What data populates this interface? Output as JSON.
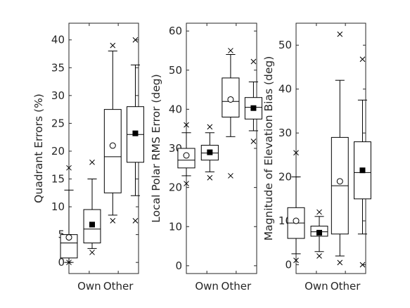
{
  "chart_data": [
    {
      "type": "box",
      "ylabel": "Quadrant Errors (%)",
      "ylim": [
        -2,
        43
      ],
      "yticks": [
        0,
        5,
        10,
        15,
        20,
        25,
        30,
        35,
        40
      ],
      "categories": [
        "Own",
        "Other"
      ],
      "boxes": [
        {
          "category": "Own",
          "whisker_low": 0,
          "q1": 0.8,
          "median": 3.5,
          "q3": 5,
          "whisker_high": 13,
          "mean": 4.5,
          "mean_marker": "open-circle",
          "outliers": [
            0,
            17
          ]
        },
        {
          "category": "Own",
          "whisker_low": 2.5,
          "q1": 3.5,
          "median": 6,
          "q3": 9.5,
          "whisker_high": 15,
          "mean": 6.8,
          "mean_marker": "filled-square",
          "outliers": [
            1.8,
            18
          ]
        },
        {
          "category": "Other",
          "whisker_low": 8.5,
          "q1": 12.5,
          "median": 19,
          "q3": 27.5,
          "whisker_high": 38,
          "mean": 21,
          "mean_marker": "open-circle",
          "outliers": [
            7.5,
            39
          ]
        },
        {
          "category": "Other",
          "whisker_low": 12,
          "q1": 18,
          "median": 23,
          "q3": 28,
          "whisker_high": 35.5,
          "mean": 23.2,
          "mean_marker": "filled-square",
          "outliers": [
            7.5,
            40
          ]
        }
      ]
    },
    {
      "type": "box",
      "ylabel": "Local Polar RMS Error (deg)",
      "ylim": [
        -2,
        62
      ],
      "yticks": [
        0,
        10,
        20,
        30,
        40,
        50,
        60
      ],
      "categories": [
        "Own",
        "Other"
      ],
      "boxes": [
        {
          "category": "Own",
          "whisker_low": 23,
          "q1": 25,
          "median": 27,
          "q3": 30,
          "whisker_high": 34,
          "mean": 28.2,
          "mean_marker": "open-circle",
          "outliers": [
            21,
            36
          ]
        },
        {
          "category": "Own",
          "whisker_low": 24,
          "q1": 27,
          "median": 28.8,
          "q3": 30.8,
          "whisker_high": 34,
          "mean": 29,
          "mean_marker": "filled-square",
          "outliers": [
            22.5,
            35.5
          ]
        },
        {
          "category": "Other",
          "whisker_low": 33,
          "q1": 38,
          "median": 42,
          "q3": 48,
          "whisker_high": 54,
          "mean": 42.5,
          "mean_marker": "open-circle",
          "outliers": [
            23,
            55
          ]
        },
        {
          "category": "Other",
          "whisker_low": 34.5,
          "q1": 37.5,
          "median": 40.5,
          "q3": 43,
          "whisker_high": 47,
          "mean": 40.3,
          "mean_marker": "filled-square",
          "outliers": [
            31.8,
            52.2
          ]
        }
      ]
    },
    {
      "type": "box",
      "ylabel": "Magnitude of Elevation Bias (deg)",
      "ylim": [
        -2,
        55
      ],
      "yticks": [
        0,
        10,
        20,
        30,
        40,
        50
      ],
      "categories": [
        "Own",
        "Other"
      ],
      "boxes": [
        {
          "category": "Own",
          "whisker_low": 2.5,
          "q1": 6,
          "median": 9.5,
          "q3": 13,
          "whisker_high": 20,
          "mean": 10,
          "mean_marker": "open-circle",
          "outliers": [
            1,
            25.5
          ]
        },
        {
          "category": "Own",
          "whisker_low": 3,
          "q1": 6.5,
          "median": 7.5,
          "q3": 8.8,
          "whisker_high": 11,
          "mean": 7.3,
          "mean_marker": "filled-square",
          "outliers": [
            2,
            12
          ]
        },
        {
          "category": "Other",
          "whisker_low": 2,
          "q1": 7,
          "median": 18,
          "q3": 29,
          "whisker_high": 42,
          "mean": 19,
          "mean_marker": "open-circle",
          "outliers": [
            0.5,
            52.5
          ]
        },
        {
          "category": "Other",
          "whisker_low": 7,
          "q1": 15,
          "median": 21,
          "q3": 28,
          "whisker_high": 37.5,
          "mean": 21.5,
          "mean_marker": "filled-square",
          "outliers": [
            0,
            46.8
          ]
        }
      ]
    }
  ]
}
